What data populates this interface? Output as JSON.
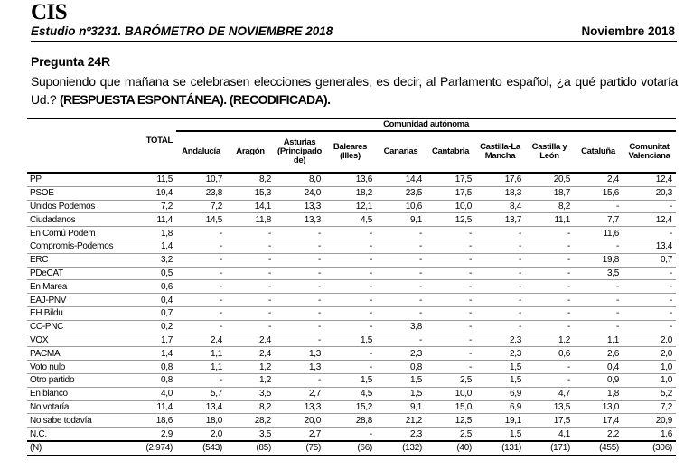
{
  "header": {
    "logo": "CIS",
    "study": "Estudio nº3231. BARÓMETRO DE NOVIEMBRE 2018",
    "date": "Noviembre 2018"
  },
  "question": {
    "title": "Pregunta 24R",
    "text": "Suponiendo que mañana se celebrasen elecciones generales, es decir, al Parlamento español, ¿a qué partido votaría Ud.? ",
    "emphasis": "(RESPUESTA ESPONTÁNEA). (RECODIFICADA)."
  },
  "table": {
    "group_header": "Comunidad autónoma",
    "total_header": "TOTAL",
    "columns": [
      "Andalucía",
      "Aragón",
      "Asturias (Principado de)",
      "Baleares (Illes)",
      "Canarias",
      "Cantabria",
      "Castilla-La Mancha",
      "Castilla y León",
      "Cataluña",
      "Comunitat Valenciana"
    ],
    "rows": [
      {
        "label": "PP",
        "values": [
          "11,5",
          "10,7",
          "8,2",
          "8,0",
          "13,6",
          "14,4",
          "17,5",
          "17,6",
          "20,5",
          "2,4",
          "12,4"
        ]
      },
      {
        "label": "PSOE",
        "values": [
          "19,4",
          "23,8",
          "15,3",
          "24,0",
          "18,2",
          "23,5",
          "17,5",
          "18,3",
          "18,7",
          "15,6",
          "20,3"
        ]
      },
      {
        "label": "Unidos Podemos",
        "values": [
          "7,2",
          "7,2",
          "14,1",
          "13,3",
          "12,1",
          "10,6",
          "10,0",
          "8,4",
          "8,2",
          "-",
          "-"
        ]
      },
      {
        "label": "Ciudadanos",
        "values": [
          "11,4",
          "14,5",
          "11,8",
          "13,3",
          "4,5",
          "9,1",
          "12,5",
          "13,7",
          "11,1",
          "7,7",
          "12,4"
        ]
      },
      {
        "label": "En Comú Podem",
        "values": [
          "1,8",
          "-",
          "-",
          "-",
          "-",
          "-",
          "-",
          "-",
          "-",
          "11,6",
          "-"
        ]
      },
      {
        "label": "Compromís-Podemos",
        "values": [
          "1,4",
          "-",
          "-",
          "-",
          "-",
          "-",
          "-",
          "-",
          "-",
          "-",
          "13,4"
        ]
      },
      {
        "label": "ERC",
        "values": [
          "3,2",
          "-",
          "-",
          "-",
          "-",
          "-",
          "-",
          "-",
          "-",
          "19,8",
          "0,7"
        ]
      },
      {
        "label": "PDeCAT",
        "values": [
          "0,5",
          "-",
          "-",
          "-",
          "-",
          "-",
          "-",
          "-",
          "-",
          "3,5",
          "-"
        ]
      },
      {
        "label": "En Marea",
        "values": [
          "0,6",
          "-",
          "-",
          "-",
          "-",
          "-",
          "-",
          "-",
          "-",
          "-",
          "-"
        ]
      },
      {
        "label": "EAJ-PNV",
        "values": [
          "0,4",
          "-",
          "-",
          "-",
          "-",
          "-",
          "-",
          "-",
          "-",
          "-",
          "-"
        ]
      },
      {
        "label": "EH Bildu",
        "values": [
          "0,7",
          "-",
          "-",
          "-",
          "-",
          "-",
          "-",
          "-",
          "-",
          "-",
          "-"
        ]
      },
      {
        "label": "CC-PNC",
        "values": [
          "0,2",
          "-",
          "-",
          "-",
          "-",
          "3,8",
          "-",
          "-",
          "-",
          "-",
          "-"
        ]
      },
      {
        "label": "VOX",
        "values": [
          "1,7",
          "2,4",
          "2,4",
          "-",
          "1,5",
          "-",
          "-",
          "2,3",
          "1,2",
          "1,1",
          "2,0"
        ]
      },
      {
        "label": "PACMA",
        "values": [
          "1,4",
          "1,1",
          "2,4",
          "1,3",
          "-",
          "2,3",
          "-",
          "2,3",
          "0,6",
          "2,6",
          "2,0"
        ]
      },
      {
        "label": "Voto nulo",
        "values": [
          "0,8",
          "1,1",
          "1,2",
          "1,3",
          "-",
          "0,8",
          "-",
          "1,5",
          "-",
          "0,4",
          "1,0"
        ]
      },
      {
        "label": "Otro partido",
        "values": [
          "0,8",
          "-",
          "1,2",
          "-",
          "1,5",
          "1,5",
          "2,5",
          "1,5",
          "-",
          "0,9",
          "1,0"
        ]
      },
      {
        "label": "En blanco",
        "values": [
          "4,0",
          "5,7",
          "3,5",
          "2,7",
          "4,5",
          "1,5",
          "10,0",
          "6,9",
          "4,7",
          "1,8",
          "5,2"
        ]
      },
      {
        "label": "No votaría",
        "values": [
          "11,4",
          "13,4",
          "8,2",
          "13,3",
          "15,2",
          "9,1",
          "15,0",
          "6,9",
          "13,5",
          "13,0",
          "7,2"
        ]
      },
      {
        "label": "No sabe todavía",
        "values": [
          "18,6",
          "18,0",
          "28,2",
          "20,0",
          "28,8",
          "21,2",
          "12,5",
          "19,1",
          "17,5",
          "17,4",
          "20,9"
        ]
      },
      {
        "label": "N.C.",
        "values": [
          "2,9",
          "2,0",
          "3,5",
          "2,7",
          "-",
          "2,3",
          "2,5",
          "1,5",
          "4,1",
          "2,2",
          "1,6"
        ]
      }
    ],
    "n_row": {
      "label": "(N)",
      "values": [
        "(2.974)",
        "(543)",
        "(85)",
        "(75)",
        "(66)",
        "(132)",
        "(40)",
        "(131)",
        "(171)",
        "(455)",
        "(306)"
      ]
    }
  }
}
